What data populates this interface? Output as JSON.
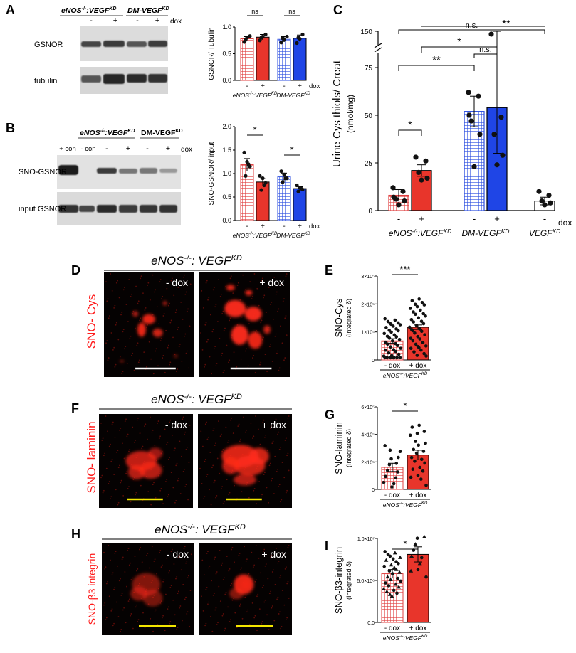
{
  "colors": {
    "red": "#e8352b",
    "blue": "#1f45e6",
    "checker_red": "#e04040",
    "checker_blue": "#2d4fe0",
    "scalebar_white": "#ffffff",
    "scalebar_yellow": "#f2e600",
    "micro_red": "#ff2a1a",
    "micro_label_red": "#ff1a1a"
  },
  "panelA": {
    "letter": "A",
    "group1": "eNOS",
    "group1_sup": "-/-",
    "group1_sep": ":VEGF",
    "group1_sup2": "KD",
    "group2": "DM-VEGF",
    "group2_sup": "KD",
    "lane_signs": [
      "-",
      "+",
      "-",
      "+"
    ],
    "dox": "dox",
    "blot_labels": [
      "GSNOR",
      "tubulin"
    ]
  },
  "panelB": {
    "letter": "B",
    "group1": "eNOS",
    "group1_sup": "-/-",
    "group1_sep": ":VEGF",
    "group1_sup2": "KD",
    "group2": "DM-VEGF",
    "group2_sup": "KD",
    "lane_labels": [
      "+ con",
      "- con",
      "-",
      "+",
      "-",
      "+"
    ],
    "dox": "dox",
    "blot_labels": [
      "SNO-GSNOR",
      "input GSNOR"
    ]
  },
  "panelC": {
    "letter": "C",
    "sig": [
      "n.s.",
      "**",
      "*",
      "n.s.",
      "**",
      "*"
    ]
  },
  "panelD": {
    "letter": "D",
    "title": "eNOS",
    "title_sup": "-/-",
    "title_rest": ": VEGF",
    "title_sup2": "KD",
    "side_label": "SNO- Cys",
    "images": [
      "- dox",
      "+ dox"
    ]
  },
  "panelE": {
    "letter": "E",
    "sig": "***"
  },
  "panelF": {
    "letter": "F",
    "title": "eNOS",
    "title_sup": "-/-",
    "title_rest": ": VEGF",
    "title_sup2": "KD",
    "side_label": "SNO- laminin",
    "images": [
      "- dox",
      "+ dox"
    ]
  },
  "panelG": {
    "letter": "G",
    "sig": "*"
  },
  "panelH": {
    "letter": "H",
    "title": "eNOS",
    "title_sup": "-/-",
    "title_rest": ": VEGF",
    "title_sup2": "KD",
    "side_label": "SNO-β3 integrin",
    "images": [
      "- dox",
      "+ dox"
    ]
  },
  "panelI": {
    "letter": "I",
    "sig": "*"
  },
  "chart_data": [
    {
      "id": "A-bar",
      "type": "bar",
      "ylabel": "GSNOR/ Tubulin",
      "ylim": [
        0,
        1.0
      ],
      "yticks": [
        "0.0",
        "0.5",
        "1.0"
      ],
      "categories": [
        "-",
        "+",
        "-",
        "+"
      ],
      "values": [
        0.78,
        0.81,
        0.77,
        0.79
      ],
      "errors": [
        0.04,
        0.05,
        0.05,
        0.06
      ],
      "points": [
        [
          0.72,
          0.8,
          0.83,
          0.76
        ],
        [
          0.75,
          0.82,
          0.86,
          0.8
        ],
        [
          0.71,
          0.76,
          0.82,
          0.79
        ],
        [
          0.7,
          0.78,
          0.86,
          0.8
        ]
      ],
      "styles": [
        "checker-red",
        "red",
        "checker-blue",
        "blue"
      ],
      "group_labels": [
        "eNOS-/-:VEGFKD",
        "DM-VEGFKD"
      ],
      "xextra": "dox",
      "annotations": [
        "ns",
        "ns"
      ]
    },
    {
      "id": "B-bar",
      "type": "bar",
      "ylabel": "SNO-GSNOR/ input",
      "ylim": [
        0,
        2.0
      ],
      "yticks": [
        "0.0",
        "0.5",
        "1.0",
        "1.5",
        "2.0"
      ],
      "categories": [
        "-",
        "+",
        "-",
        "+"
      ],
      "values": [
        1.19,
        0.82,
        0.93,
        0.68
      ],
      "errors": [
        0.13,
        0.07,
        0.08,
        0.04
      ],
      "points": [
        [
          1.45,
          1.25,
          1.15,
          0.95,
          1.2
        ],
        [
          0.95,
          0.9,
          0.8,
          0.65,
          0.75
        ],
        [
          1.05,
          0.98,
          0.9,
          0.82,
          0.9
        ],
        [
          0.75,
          0.7,
          0.66,
          0.62,
          0.68
        ]
      ],
      "styles": [
        "checker-red",
        "red",
        "checker-blue",
        "blue"
      ],
      "group_labels": [
        "eNOS-/-:VEGFKD",
        "DM-VEGFKD"
      ],
      "xextra": "dox",
      "annotations": [
        "*",
        "*"
      ]
    },
    {
      "id": "C-bar",
      "type": "bar",
      "ylabel": "Urine Cys thiols/ Creat",
      "ylabel2": "(nmol/mg)",
      "yticks": [
        "0",
        "25",
        "50",
        "75",
        "150"
      ],
      "ylim": [
        0,
        150
      ],
      "axis_break": [
        75,
        150
      ],
      "categories": [
        "-",
        "+",
        "-",
        "+",
        "-"
      ],
      "values": [
        8,
        21,
        52,
        54,
        5
      ],
      "errors": [
        3,
        3,
        8,
        24,
        2
      ],
      "points": [
        [
          12,
          10,
          6,
          5,
          3,
          7
        ],
        [
          28,
          26,
          20,
          17,
          16
        ],
        [
          62,
          60,
          47,
          40,
          23,
          50
        ],
        [
          90,
          49,
          40,
          29,
          24
        ],
        [
          10,
          8,
          5,
          4,
          3
        ]
      ],
      "styles": [
        "checker-red",
        "red",
        "checker-blue",
        "blue",
        "white"
      ],
      "group_labels": [
        "eNOS-/-:VEGFKD",
        "DM-VEGFKD",
        "VEGFKD"
      ],
      "xextra": "dox"
    },
    {
      "id": "E-bar",
      "type": "bar",
      "ylabel": "SNO-Cys",
      "ylabel2": "(Integrated δ)",
      "ylim": [
        0,
        300000
      ],
      "yticks": [
        "0",
        "1×10⁵",
        "2×10⁵",
        "3×10⁵"
      ],
      "categories": [
        "- dox",
        "+ dox"
      ],
      "values": [
        68000,
        117000
      ],
      "errors": [
        8000,
        8000
      ],
      "styles": [
        "checker-red",
        "red"
      ],
      "group_label": "eNOS-/-:VEGFKD"
    },
    {
      "id": "G-bar",
      "type": "bar",
      "ylabel": "SNO-laminin",
      "ylabel2": "(Integrated δ)",
      "ylim": [
        0,
        600000
      ],
      "yticks": [
        "0",
        "2×10⁵",
        "4×10⁵",
        "6×10⁵"
      ],
      "categories": [
        "- dox",
        "+ dox"
      ],
      "values": [
        160000,
        250000
      ],
      "errors": [
        30000,
        35000
      ],
      "styles": [
        "checker-red",
        "red"
      ],
      "group_label": "eNOS-/-:VEGFKD"
    },
    {
      "id": "I-bar",
      "type": "bar",
      "ylabel": "SNO-β3-integrin",
      "ylabel2": "(Integrated δ)",
      "ylim": [
        0,
        10000000
      ],
      "yticks": [
        "0.0",
        "5.0×10⁶",
        "1.0×10⁷"
      ],
      "categories": [
        "- dox",
        "+ dox"
      ],
      "values": [
        5800000,
        8100000
      ],
      "errors": [
        500000,
        900000
      ],
      "styles": [
        "checker-red",
        "red"
      ],
      "group_label": "eNOS-/-:VEGFKD"
    }
  ]
}
